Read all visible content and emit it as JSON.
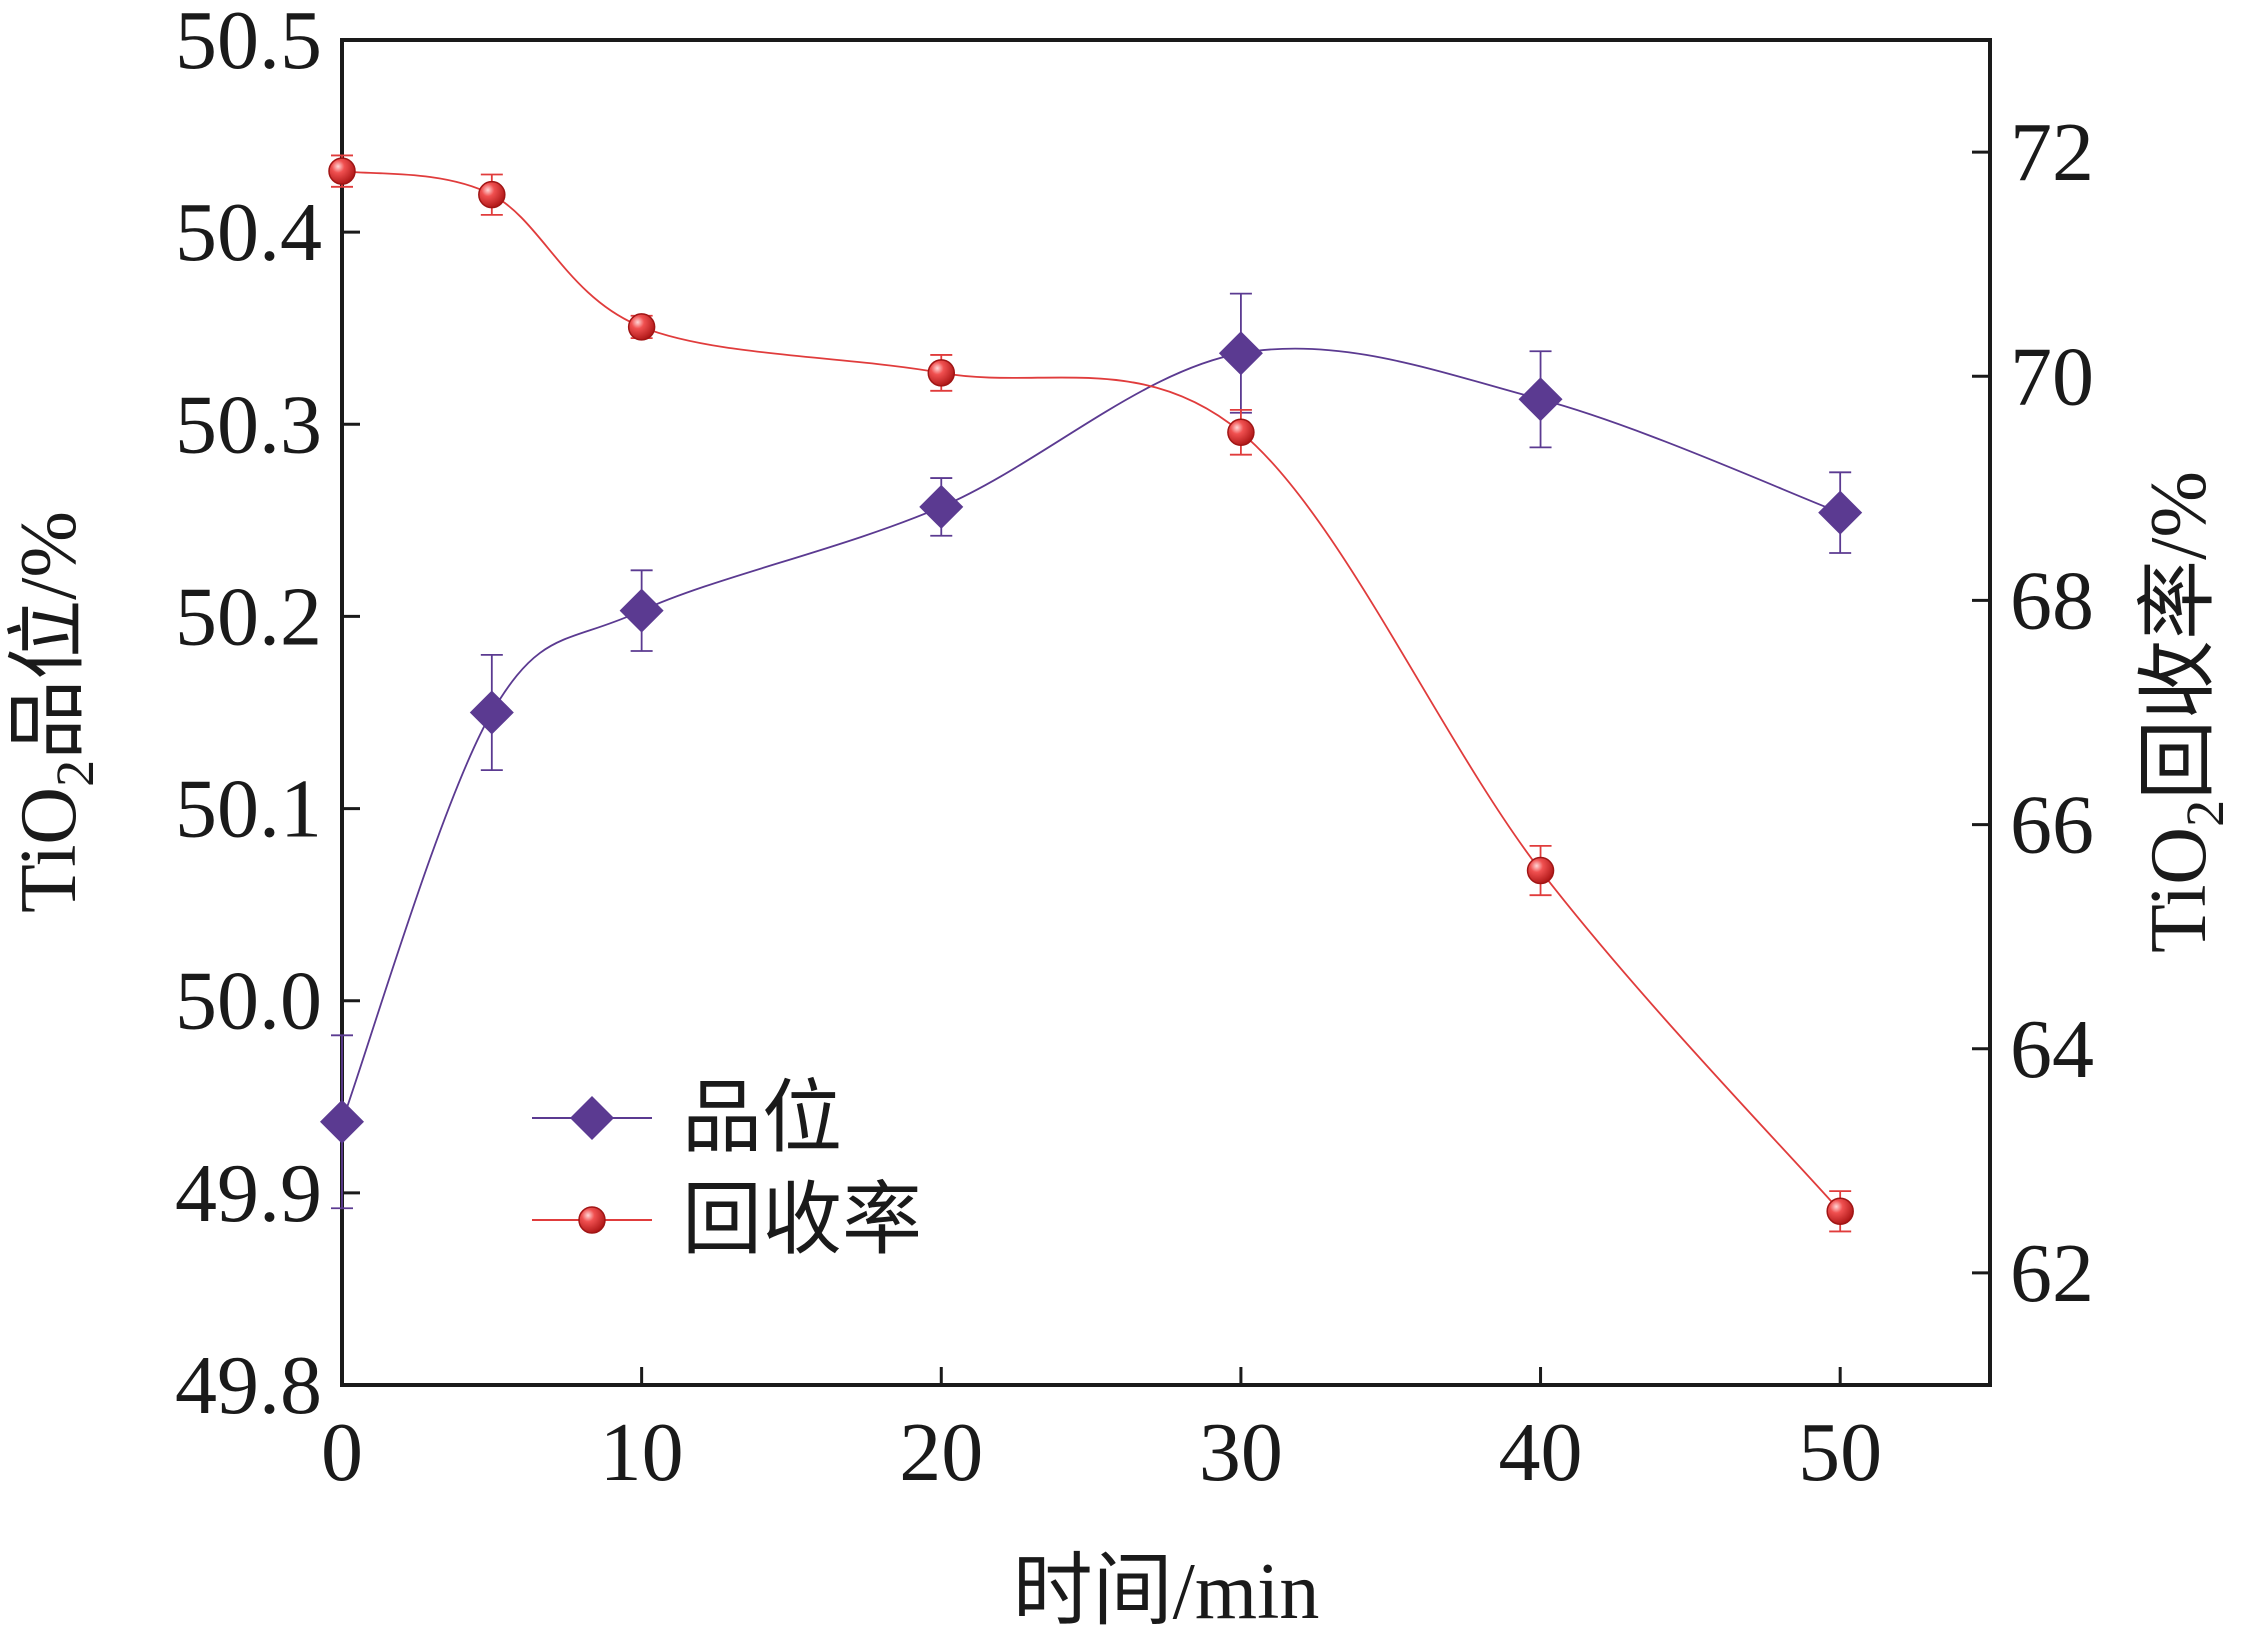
{
  "chart_data": {
    "type": "line",
    "x_axis": {
      "label": "时间/min",
      "ticks": [
        0,
        10,
        20,
        30,
        40,
        50
      ],
      "range": [
        0,
        55
      ]
    },
    "y_left": {
      "label_main": "TiO",
      "label_sub": "2",
      "label_rest": "品位/%",
      "ticks": [
        "49.8",
        "49.9",
        "50.0",
        "50.1",
        "50.2",
        "50.3",
        "50.4",
        "50.5"
      ],
      "range": [
        49.8,
        50.5
      ]
    },
    "y_right": {
      "label_main": "TiO",
      "label_sub": "2",
      "label_rest": "回收率/%",
      "ticks": [
        "62",
        "64",
        "66",
        "68",
        "70",
        "72"
      ],
      "range": [
        61,
        73
      ]
    },
    "series": [
      {
        "name": "品位",
        "axis": "left",
        "marker": "diamond",
        "color": "#5b3a91",
        "x": [
          0,
          5,
          10,
          20,
          30,
          40,
          50
        ],
        "y": [
          49.937,
          50.15,
          50.203,
          50.257,
          50.337,
          50.313,
          50.254
        ],
        "err": [
          0.045,
          0.03,
          0.021,
          0.015,
          0.031,
          0.025,
          0.021
        ]
      },
      {
        "name": "回收率",
        "axis": "right",
        "marker": "sphere",
        "color": "#e03c3c",
        "x": [
          0,
          5,
          10,
          20,
          30,
          40,
          50
        ],
        "y": [
          71.83,
          71.62,
          70.44,
          70.03,
          69.5,
          65.59,
          62.55
        ],
        "err": [
          0.14,
          0.18,
          0.1,
          0.16,
          0.2,
          0.22,
          0.18
        ]
      }
    ],
    "legend": {
      "position": "bottom-left",
      "entries": [
        "品位",
        "回收率"
      ]
    },
    "grid": false
  }
}
